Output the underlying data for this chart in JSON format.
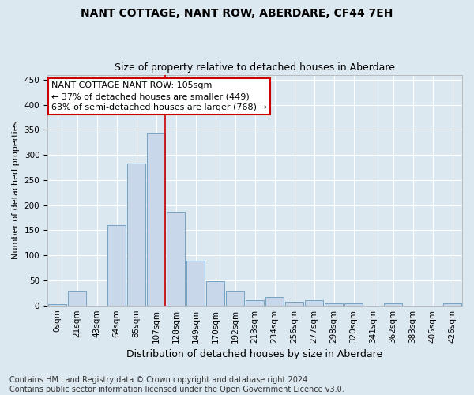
{
  "title": "NANT COTTAGE, NANT ROW, ABERDARE, CF44 7EH",
  "subtitle": "Size of property relative to detached houses in Aberdare",
  "xlabel": "Distribution of detached houses by size in Aberdare",
  "ylabel": "Number of detached properties",
  "categories": [
    "0sqm",
    "21sqm",
    "43sqm",
    "64sqm",
    "85sqm",
    "107sqm",
    "128sqm",
    "149sqm",
    "170sqm",
    "192sqm",
    "213sqm",
    "234sqm",
    "256sqm",
    "277sqm",
    "298sqm",
    "320sqm",
    "341sqm",
    "362sqm",
    "383sqm",
    "405sqm",
    "426sqm"
  ],
  "values": [
    2,
    30,
    0,
    160,
    283,
    345,
    187,
    89,
    49,
    30,
    10,
    17,
    8,
    10,
    5,
    5,
    0,
    5,
    0,
    0,
    5
  ],
  "bar_color": "#c8d8ea",
  "bar_edge_color": "#6699bb",
  "highlight_index": 5,
  "highlight_line_color": "#cc0000",
  "annotation_text": "NANT COTTAGE NANT ROW: 105sqm\n← 37% of detached houses are smaller (449)\n63% of semi-detached houses are larger (768) →",
  "annotation_box_color": "#ffffff",
  "annotation_box_edge": "#cc0000",
  "ylim": [
    0,
    460
  ],
  "yticks": [
    0,
    50,
    100,
    150,
    200,
    250,
    300,
    350,
    400,
    450
  ],
  "background_color": "#dce8f0",
  "plot_background": "#dce8f0",
  "footnote": "Contains HM Land Registry data © Crown copyright and database right 2024.\nContains public sector information licensed under the Open Government Licence v3.0.",
  "title_fontsize": 10,
  "subtitle_fontsize": 9,
  "xlabel_fontsize": 9,
  "ylabel_fontsize": 8,
  "tick_fontsize": 7.5,
  "annotation_fontsize": 8,
  "footnote_fontsize": 7
}
